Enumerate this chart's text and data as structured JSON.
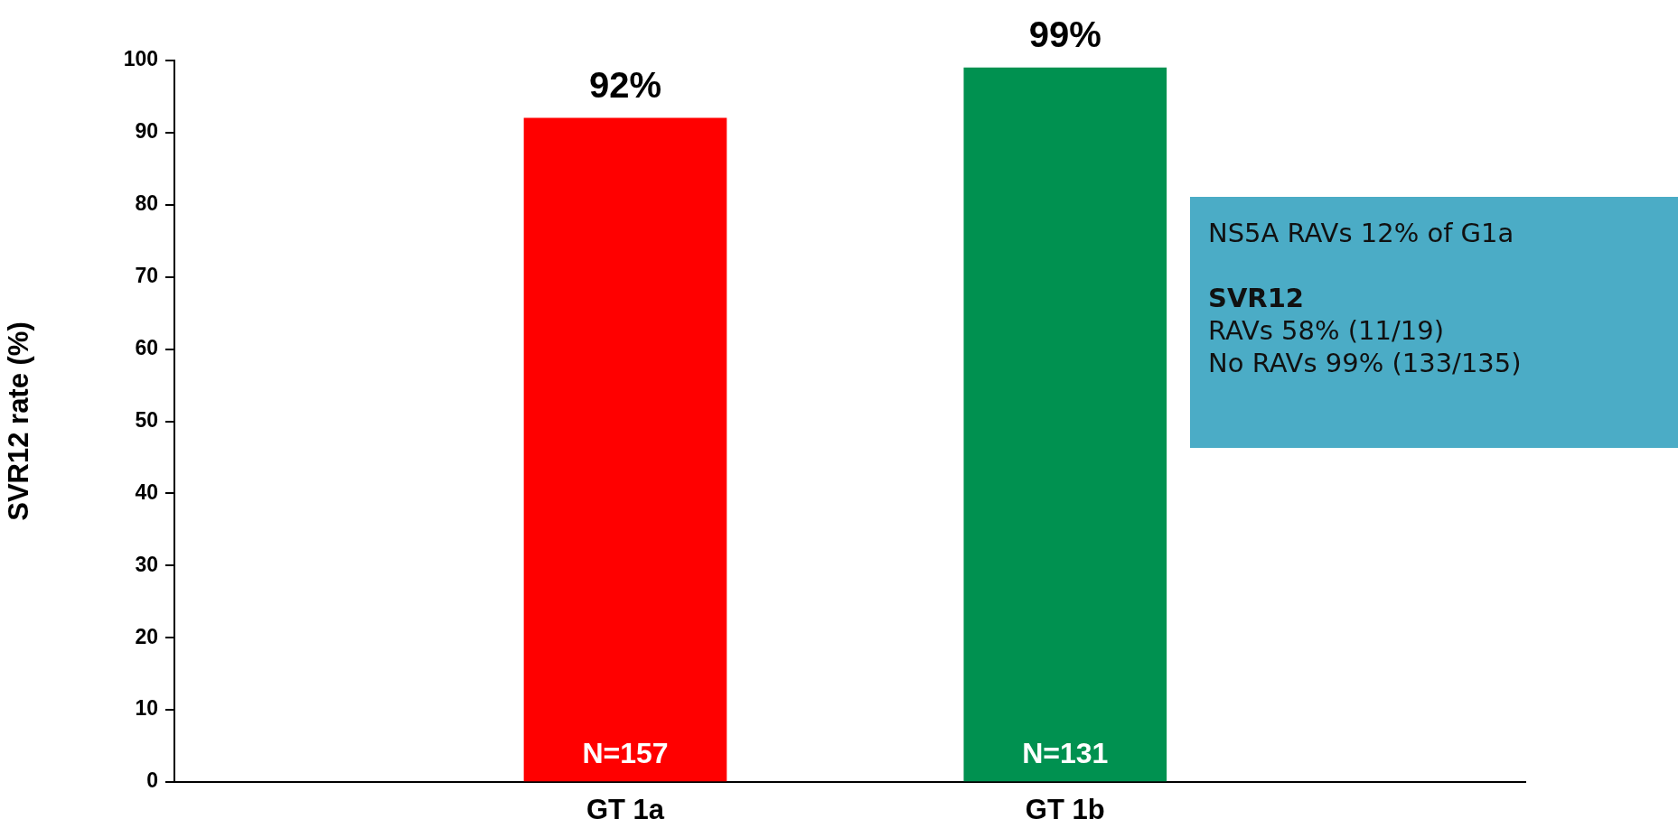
{
  "chart_data": {
    "type": "bar",
    "categories": [
      "GT 1a",
      "GT 1b"
    ],
    "values": [
      92,
      99
    ],
    "colors": [
      "#ff0000",
      "#009150"
    ],
    "value_labels": [
      "92%",
      "99%"
    ],
    "ylabel": "SVR12 rate (%)",
    "ylim": [
      0,
      100
    ],
    "yticks": [
      0,
      10,
      20,
      30,
      40,
      50,
      60,
      70,
      80,
      90,
      100
    ],
    "grid": false,
    "legend": false,
    "annotations": [
      "N=157",
      "N=131",
      "NS5A RAVs 12% of G1a",
      "SVR12",
      "RAVs 58% (11/19)",
      "No RAVs 99% (133/135)"
    ]
  }
}
